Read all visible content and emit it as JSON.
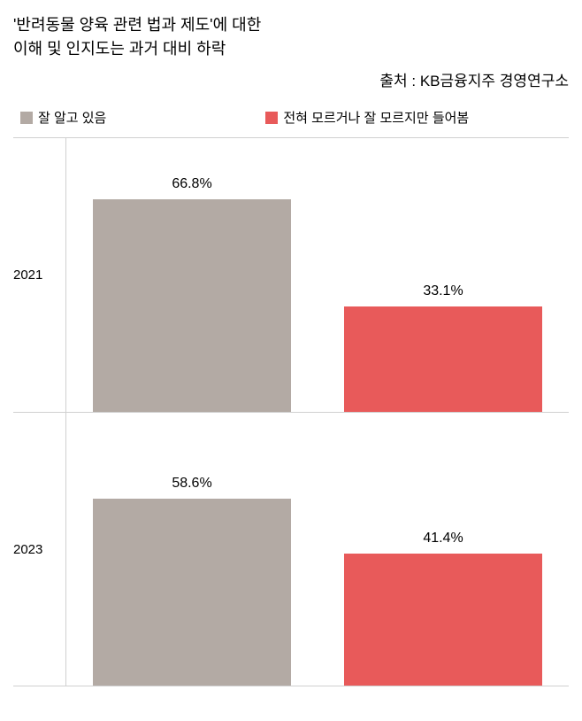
{
  "chart": {
    "type": "bar",
    "title_line1": "'반려동물 양육 관련 법과 제도'에 대한",
    "title_line2": "이해 및 인지도는 과거 대비 하락",
    "source": "출처 : KB금융지주 경영연구소",
    "legend": {
      "series1": {
        "label": "잘 알고 있음",
        "color": "#b3aaa4"
      },
      "series2": {
        "label": "전혀 모르거나 잘 모르지만 들어봄",
        "color": "#e85a5a"
      }
    },
    "panels": [
      {
        "year": "2021",
        "series1_value": 66.8,
        "series1_label": "66.8%",
        "series2_value": 33.1,
        "series2_label": "33.1%"
      },
      {
        "year": "2023",
        "series1_value": 58.6,
        "series1_label": "58.6%",
        "series2_value": 41.4,
        "series2_label": "41.4%"
      }
    ],
    "max_value": 75,
    "background_color": "#ffffff",
    "gridline_color": "#d0d0d0",
    "text_color": "#000000",
    "title_fontsize": 18,
    "source_fontsize": 17,
    "legend_fontsize": 15,
    "label_fontsize": 16
  }
}
